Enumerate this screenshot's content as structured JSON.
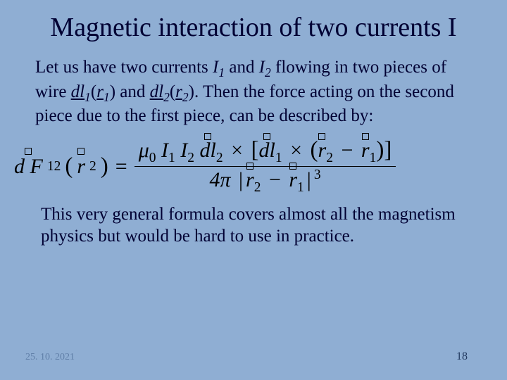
{
  "background_color": "#8faed3",
  "text_color": "#000033",
  "title": "Magnetic interaction of two currents I",
  "para1_parts": {
    "a": "Let us have two currents ",
    "i1": "I",
    "i1sub": "1",
    "b": " and ",
    "i2": "I",
    "i2sub": "2",
    "c": " flowing in two pieces of wire ",
    "dl1": "dl",
    "dl1sub": "1",
    "r1open": "(",
    "r1": "r",
    "r1sub": "1",
    "r1close": ")",
    "d": " and ",
    "dl2": "dl",
    "dl2sub": "2",
    "r2open": "(",
    "r2": "r",
    "r2sub": "2",
    "r2close": ")",
    "e": ". Then the force acting on the second piece due to the first piece, can be described by:"
  },
  "formula": {
    "lhs_dF": "d F",
    "lhs_sub": "12",
    "lhs_arg_r": "r",
    "lhs_arg_sub": "2",
    "eq": "=",
    "mu": "μ",
    "mu_sub": "0",
    "I1": "I",
    "I1_sub": "1",
    "I2": "I",
    "I2_sub": "2",
    "dl2": "dl",
    "dl2_sub": "2",
    "times": "×",
    "dl1": "dl",
    "dl1_sub": "1",
    "r2": "r",
    "r2_sub": "2",
    "minus": "−",
    "r1": "r",
    "r1_sub": "1",
    "fourpi": "4π",
    "abs_open": "|",
    "abs_close": "|",
    "cube": "3"
  },
  "para2": "This very general formula covers almost all the magnetism physics but would be hard to use in practice.",
  "footer_date": "25. 10. 2021",
  "footer_page": "18"
}
